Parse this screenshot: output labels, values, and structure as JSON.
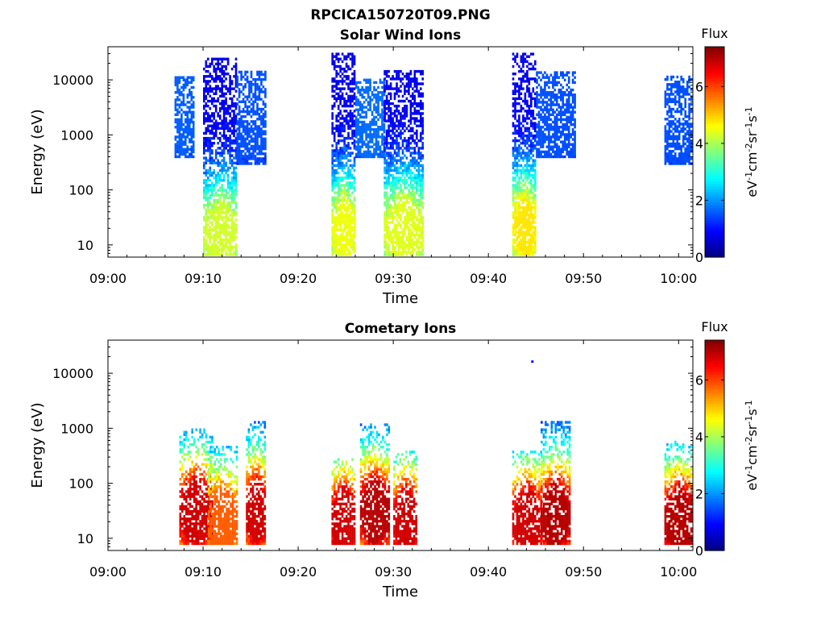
{
  "figure_title": "RPCICA150720T09.PNG",
  "chart_data": [
    {
      "type": "heatmap",
      "title": "Solar Wind Ions",
      "xlabel": "Time",
      "ylabel": "Energy (eV)",
      "x_ticks": [
        "09:00",
        "09:10",
        "09:20",
        "09:30",
        "09:40",
        "09:50",
        "10:00"
      ],
      "x_range_minutes": [
        0,
        61.5
      ],
      "y_scale": "log",
      "y_ticks": [
        10,
        100,
        1000,
        10000
      ],
      "y_range": [
        6,
        40000
      ],
      "colorbar": {
        "label_top": "Flux",
        "label": "eV-1cm-2sr-1s-1",
        "ticks": [
          0,
          2,
          4,
          6
        ],
        "range": [
          0,
          7.4
        ],
        "colormap": "jet"
      },
      "bursts": [
        {
          "t_start": "09:07",
          "t_end": "09:09",
          "e_min": 400,
          "e_max": 12000,
          "peak_flux": 1.6,
          "peak_energy": 3000
        },
        {
          "t_start": "09:10",
          "t_end": "09:13:30",
          "e_min": 6,
          "e_max": 25000,
          "peak_flux": 4.3,
          "peak_energy": 15
        },
        {
          "t_start": "09:13:30",
          "t_end": "09:16:30",
          "e_min": 300,
          "e_max": 15000,
          "peak_flux": 1.5,
          "peak_energy": 3000
        },
        {
          "t_start": "09:23:30",
          "t_end": "09:26",
          "e_min": 6,
          "e_max": 30000,
          "peak_flux": 4.5,
          "peak_energy": 18
        },
        {
          "t_start": "09:26",
          "t_end": "09:29",
          "e_min": 400,
          "e_max": 10000,
          "peak_flux": 1.7,
          "peak_energy": 2500
        },
        {
          "t_start": "09:29",
          "t_end": "09:33",
          "e_min": 6,
          "e_max": 15000,
          "peak_flux": 4.4,
          "peak_energy": 18
        },
        {
          "t_start": "09:42:30",
          "t_end": "09:45",
          "e_min": 6,
          "e_max": 30000,
          "peak_flux": 4.8,
          "peak_energy": 20
        },
        {
          "t_start": "09:45",
          "t_end": "09:49",
          "e_min": 400,
          "e_max": 15000,
          "peak_flux": 1.5,
          "peak_energy": 3000
        },
        {
          "t_start": "09:58:30",
          "t_end": "10:01:30",
          "e_min": 300,
          "e_max": 12000,
          "peak_flux": 1.5,
          "peak_energy": 2500
        }
      ]
    },
    {
      "type": "heatmap",
      "title": "Cometary Ions",
      "xlabel": "Time",
      "ylabel": "Energy (eV)",
      "x_ticks": [
        "09:00",
        "09:10",
        "09:20",
        "09:30",
        "09:40",
        "09:50",
        "10:00"
      ],
      "x_range_minutes": [
        0,
        61.5
      ],
      "y_scale": "log",
      "y_ticks": [
        10,
        100,
        1000,
        10000
      ],
      "y_range": [
        6,
        40000
      ],
      "colorbar": {
        "label_top": "Flux",
        "label": "eV-1cm-2sr-1s-1",
        "ticks": [
          0,
          2,
          4,
          6
        ],
        "range": [
          0,
          7.4
        ],
        "colormap": "jet"
      },
      "bursts": [
        {
          "t_start": "09:07:30",
          "t_end": "09:11",
          "e_min": 8,
          "e_max": 1000,
          "peak_flux": 6.8,
          "peak_energy": 30
        },
        {
          "t_start": "09:10:30",
          "t_end": "09:13:30",
          "e_min": 8,
          "e_max": 500,
          "peak_flux": 5.8,
          "peak_energy": 20
        },
        {
          "t_start": "09:14:30",
          "t_end": "09:16:30",
          "e_min": 8,
          "e_max": 1500,
          "peak_flux": 6.8,
          "peak_energy": 30
        },
        {
          "t_start": "09:23:30",
          "t_end": "09:26",
          "e_min": 8,
          "e_max": 300,
          "peak_flux": 6.8,
          "peak_energy": 20
        },
        {
          "t_start": "09:26:30",
          "t_end": "09:29:30",
          "e_min": 8,
          "e_max": 1200,
          "peak_flux": 7.0,
          "peak_energy": 30
        },
        {
          "t_start": "09:30",
          "t_end": "09:32:30",
          "e_min": 8,
          "e_max": 400,
          "peak_flux": 6.8,
          "peak_energy": 20
        },
        {
          "t_start": "09:42:30",
          "t_end": "09:45:30",
          "e_min": 8,
          "e_max": 400,
          "peak_flux": 6.8,
          "peak_energy": 20
        },
        {
          "t_start": "09:45:30",
          "t_end": "09:48:30",
          "e_min": 8,
          "e_max": 1400,
          "peak_flux": 7.0,
          "peak_energy": 25
        },
        {
          "t_start": "09:58:30",
          "t_end": "10:01:30",
          "e_min": 8,
          "e_max": 600,
          "peak_flux": 7.0,
          "peak_energy": 20
        }
      ],
      "outliers": [
        {
          "t": "09:44:30",
          "energy": 16000,
          "flux": 1.0
        }
      ]
    }
  ]
}
